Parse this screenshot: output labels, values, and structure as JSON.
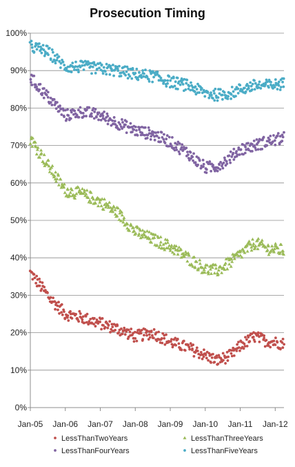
{
  "chart_data": {
    "type": "scatter",
    "title": "Prosecution Timing",
    "xlabel": "",
    "ylabel": "",
    "x_ticks": [
      "Jan-05",
      "Jan-06",
      "Jan-07",
      "Jan-08",
      "Jan-09",
      "Jan-10",
      "Jan-11",
      "Jan-12"
    ],
    "y_ticks": [
      "0%",
      "10%",
      "20%",
      "30%",
      "40%",
      "50%",
      "60%",
      "70%",
      "80%",
      "90%",
      "100%"
    ],
    "xlim": [
      "2005-01",
      "2012-04"
    ],
    "ylim": [
      0,
      100
    ],
    "grid": "horizontal",
    "legend_position": "bottom",
    "series": [
      {
        "name": "LessThanTwoYears",
        "color": "#c0504d",
        "marker": "circle",
        "anchors": [
          [
            "2005-01",
            36
          ],
          [
            "2005-04",
            33
          ],
          [
            "2005-08",
            29
          ],
          [
            "2006-01",
            25
          ],
          [
            "2006-07",
            24
          ],
          [
            "2007-01",
            22.5
          ],
          [
            "2007-07",
            21
          ],
          [
            "2008-01",
            19
          ],
          [
            "2008-07",
            20
          ],
          [
            "2009-01",
            17.5
          ],
          [
            "2009-07",
            16
          ],
          [
            "2010-01",
            14
          ],
          [
            "2010-05",
            12.5
          ],
          [
            "2010-10",
            14
          ],
          [
            "2011-01",
            16.5
          ],
          [
            "2011-06",
            19
          ],
          [
            "2011-09",
            18
          ],
          [
            "2012-04",
            17
          ]
        ]
      },
      {
        "name": "LessThanThreeYears",
        "color": "#9bbb59",
        "marker": "triangle",
        "anchors": [
          [
            "2005-01",
            72
          ],
          [
            "2005-06",
            66
          ],
          [
            "2006-01",
            58
          ],
          [
            "2006-07",
            57
          ],
          [
            "2007-01",
            55
          ],
          [
            "2007-07",
            52
          ],
          [
            "2008-01",
            47
          ],
          [
            "2008-07",
            45
          ],
          [
            "2009-01",
            43
          ],
          [
            "2009-07",
            40
          ],
          [
            "2010-01",
            37
          ],
          [
            "2010-05",
            36.5
          ],
          [
            "2010-10",
            39
          ],
          [
            "2011-01",
            41
          ],
          [
            "2011-06",
            44
          ],
          [
            "2011-10",
            42.5
          ],
          [
            "2012-04",
            42
          ]
        ]
      },
      {
        "name": "LessThanFourYears",
        "color": "#8064a2",
        "marker": "circle",
        "anchors": [
          [
            "2005-01",
            88
          ],
          [
            "2005-07",
            83
          ],
          [
            "2006-01",
            78
          ],
          [
            "2006-07",
            79
          ],
          [
            "2007-01",
            78
          ],
          [
            "2007-07",
            76
          ],
          [
            "2008-01",
            74
          ],
          [
            "2008-07",
            73
          ],
          [
            "2009-01",
            71
          ],
          [
            "2009-07",
            68
          ],
          [
            "2010-01",
            64
          ],
          [
            "2010-05",
            64.5
          ],
          [
            "2010-10",
            67
          ],
          [
            "2011-01",
            69
          ],
          [
            "2011-06",
            70
          ],
          [
            "2011-10",
            71
          ],
          [
            "2012-04",
            72
          ]
        ]
      },
      {
        "name": "LessThanFiveYears",
        "color": "#4bacc6",
        "marker": "circle",
        "anchors": [
          [
            "2005-01",
            96.5
          ],
          [
            "2005-07",
            95
          ],
          [
            "2006-01",
            91
          ],
          [
            "2006-07",
            91
          ],
          [
            "2007-01",
            90.5
          ],
          [
            "2007-07",
            90
          ],
          [
            "2008-01",
            89
          ],
          [
            "2008-07",
            88.5
          ],
          [
            "2009-01",
            87
          ],
          [
            "2009-07",
            86
          ],
          [
            "2010-01",
            84
          ],
          [
            "2010-05",
            83.5
          ],
          [
            "2010-10",
            84
          ],
          [
            "2011-01",
            85
          ],
          [
            "2011-06",
            86
          ],
          [
            "2011-10",
            86
          ],
          [
            "2012-04",
            86.5
          ]
        ]
      }
    ]
  }
}
